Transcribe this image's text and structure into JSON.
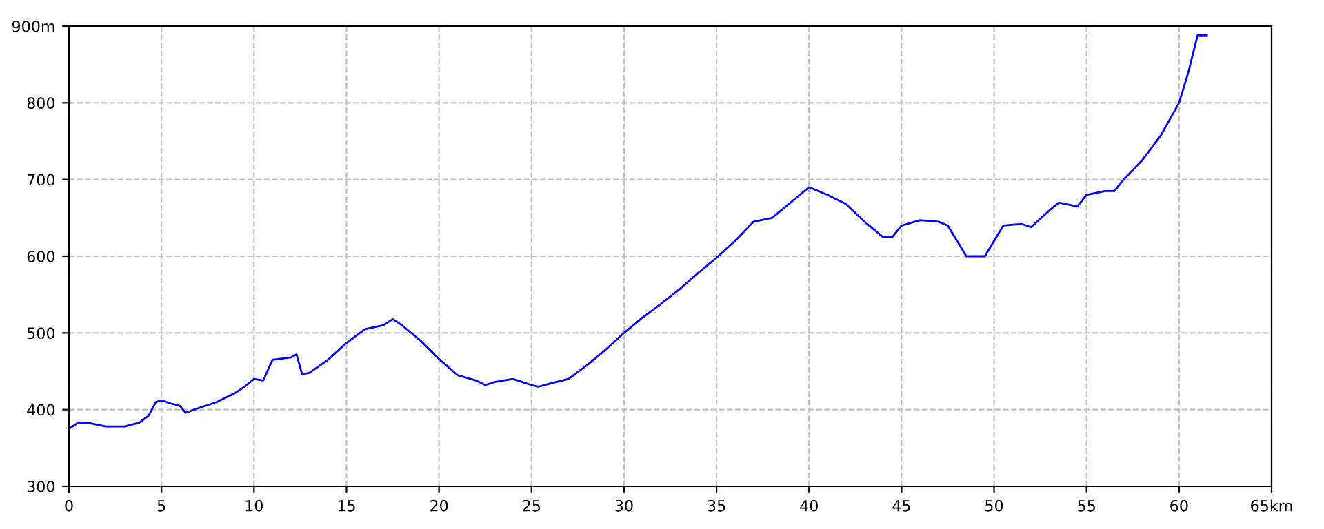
{
  "chart_data": {
    "type": "line",
    "x": [
      0,
      0.5,
      1,
      2,
      3,
      3.8,
      4.3,
      4.7,
      5,
      5.5,
      6,
      6.3,
      7,
      8,
      9,
      9.5,
      10,
      10.5,
      11,
      12,
      12.3,
      12.6,
      13,
      14,
      15,
      16,
      17,
      17.5,
      18,
      19,
      20,
      21,
      22,
      22.5,
      23,
      24,
      25,
      25.4,
      26,
      27,
      28,
      29,
      30,
      31,
      32,
      33,
      34,
      35,
      36,
      37,
      38,
      39,
      40,
      41,
      42,
      43,
      44,
      44.5,
      45,
      46,
      47,
      47.5,
      48,
      48.5,
      49.5,
      50.5,
      51.5,
      52,
      53,
      53.5,
      54.5,
      55,
      56,
      56.5,
      57,
      58,
      59,
      60,
      60.5,
      61,
      61.5
    ],
    "series": [
      {
        "color": "#0000ff",
        "values": [
          375,
          383,
          383,
          378,
          378,
          383,
          392,
          410,
          412,
          408,
          405,
          396,
          402,
          410,
          422,
          430,
          440,
          438,
          465,
          468,
          472,
          446,
          448,
          465,
          487,
          505,
          510,
          518,
          510,
          490,
          466,
          445,
          438,
          432,
          436,
          440,
          432,
          430,
          434,
          440,
          458,
          478,
          500,
          520,
          538,
          557,
          578,
          598,
          620,
          645,
          650,
          670,
          690,
          680,
          668,
          645,
          625,
          625,
          640,
          647,
          645,
          640,
          620,
          600,
          600,
          640,
          642,
          638,
          660,
          670,
          665,
          680,
          685,
          685,
          700,
          725,
          757,
          800,
          840,
          888,
          888
        ]
      }
    ],
    "xlim": [
      0,
      65
    ],
    "xticks": [
      0,
      5,
      10,
      15,
      20,
      25,
      30,
      35,
      40,
      45,
      50,
      55,
      60,
      {
        "value": 65,
        "label": "65km"
      }
    ],
    "ylim": [
      300,
      900
    ],
    "yticks": [
      300,
      400,
      500,
      600,
      700,
      800,
      {
        "value": 900,
        "label": "900m"
      }
    ],
    "grid": true,
    "legend": false,
    "marker": "none",
    "line_style": "solid"
  }
}
